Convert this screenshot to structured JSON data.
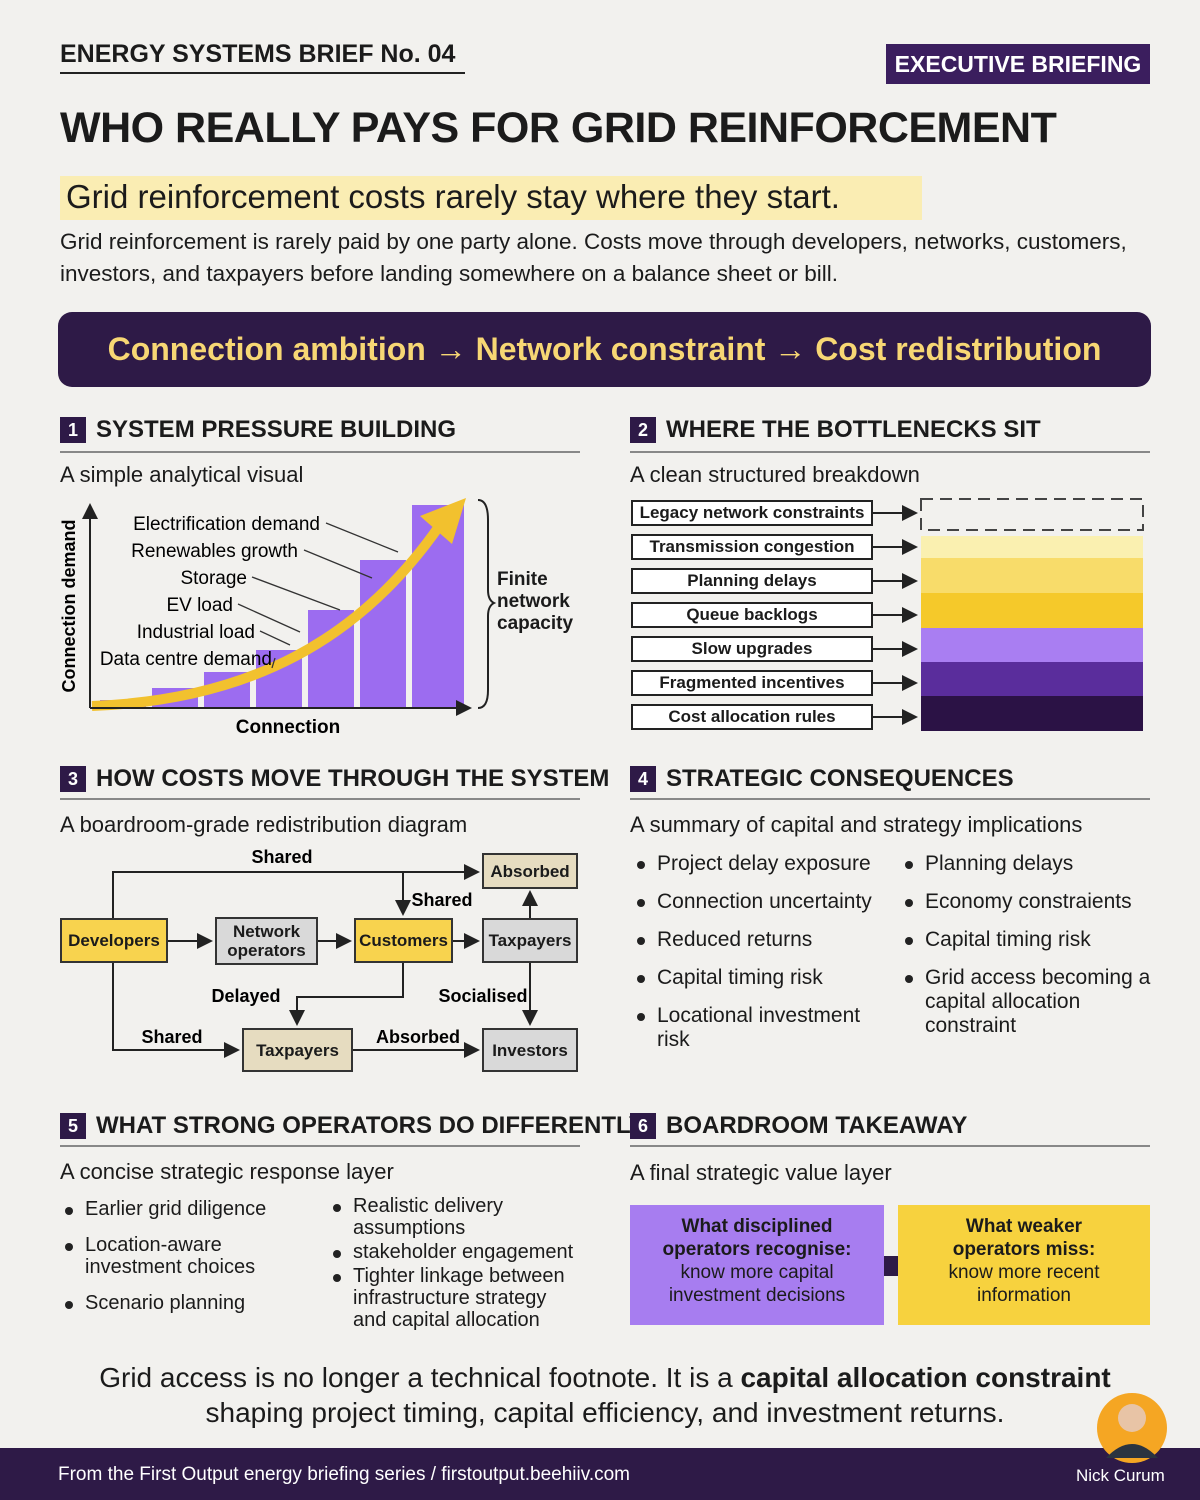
{
  "header": {
    "series": "ENERGY SYSTEMS BRIEF No. 04",
    "badge": "EXECUTIVE BRIEFING",
    "title": "WHO REALLY PAYS FOR GRID REINFORCEMENT",
    "subtitle": "Grid reinforcement costs rarely stay where they start.",
    "intro": "Grid reinforcement is rarely paid by one party alone. Costs move through developers, networks, customers, investors, and taxpayers before landing somewhere on a balance sheet or bill."
  },
  "banner": "Connection ambition → Network constraint → Cost redistribution",
  "sections": [
    {
      "number": "1",
      "title": "SYSTEM PRESSURE BUILDING",
      "subtitle": "A simple analytical visual",
      "y_axis": "Connection demand",
      "x_axis": "Connection",
      "labels": [
        "Electrification demand",
        "Renewables growth",
        "Storage",
        "EV load",
        "Industrial load",
        "Data centre demand"
      ],
      "capacity": "Finite network capacity"
    },
    {
      "number": "2",
      "title": "WHERE THE BOTTLENECKS SIT",
      "subtitle": "A clean structured breakdown",
      "items": [
        "Legacy network constraints",
        "Transmission congestion",
        "Planning delays",
        "Queue backlogs",
        "Slow upgrades",
        "Fragmented incentives",
        "Cost allocation rules"
      ]
    },
    {
      "number": "3",
      "title": "HOW COSTS MOVE THROUGH THE SYSTEM",
      "subtitle": "A boardroom-grade redistribution diagram",
      "nodes": [
        "Developers",
        "Network operators",
        "Customers",
        "Taxpayers",
        "Absorbed",
        "Taxpayers",
        "Investors"
      ],
      "edges": [
        "Shared",
        "Shared",
        "Delayed",
        "Socialised",
        "Shared",
        "Absorbed"
      ]
    },
    {
      "number": "4",
      "title": "STRATEGIC CONSEQUENCES",
      "subtitle": "A summary of capital and strategy implications",
      "left": [
        "Project delay exposure",
        "Connection uncertainty",
        "Reduced returns",
        "Capital timing risk",
        "Locational investment risk"
      ],
      "right": [
        "Planning delays",
        "Economy constraients",
        "Capital timing risk",
        "Grid access becoming a capital allocation constraint"
      ]
    },
    {
      "number": "5",
      "title": "WHAT STRONG OPERATORS DO DIFFERENTLY",
      "subtitle": "A concise strategic response layer",
      "left": [
        "Earlier grid diligence",
        "Location-aware investment choices",
        "Scenario planning"
      ],
      "right": [
        "Realistic delivery assumptions",
        "stakeholder engagement",
        "Tighter linkage between infrastructure strategy and capital allocation"
      ]
    },
    {
      "number": "6",
      "title": "BOARDROOM TAKEAWAY",
      "subtitle": "A final strategic value layer",
      "left_title": "What disciplined operators recognise:",
      "left_text": "know more capital investment decisions",
      "right_title": "What weaker operators miss:",
      "right_text": "know more recent information"
    }
  ],
  "closing": {
    "before": "Grid access is no longer a technical footnote. It is a",
    "emphasis": "capital allocation constraint",
    "after": "shaping project timing, capital efficiency, and investment returns."
  },
  "footer": {
    "source": "From the First Output energy briefing series / firstoutput.beehiiv.com",
    "author": "Nick Curum"
  }
}
